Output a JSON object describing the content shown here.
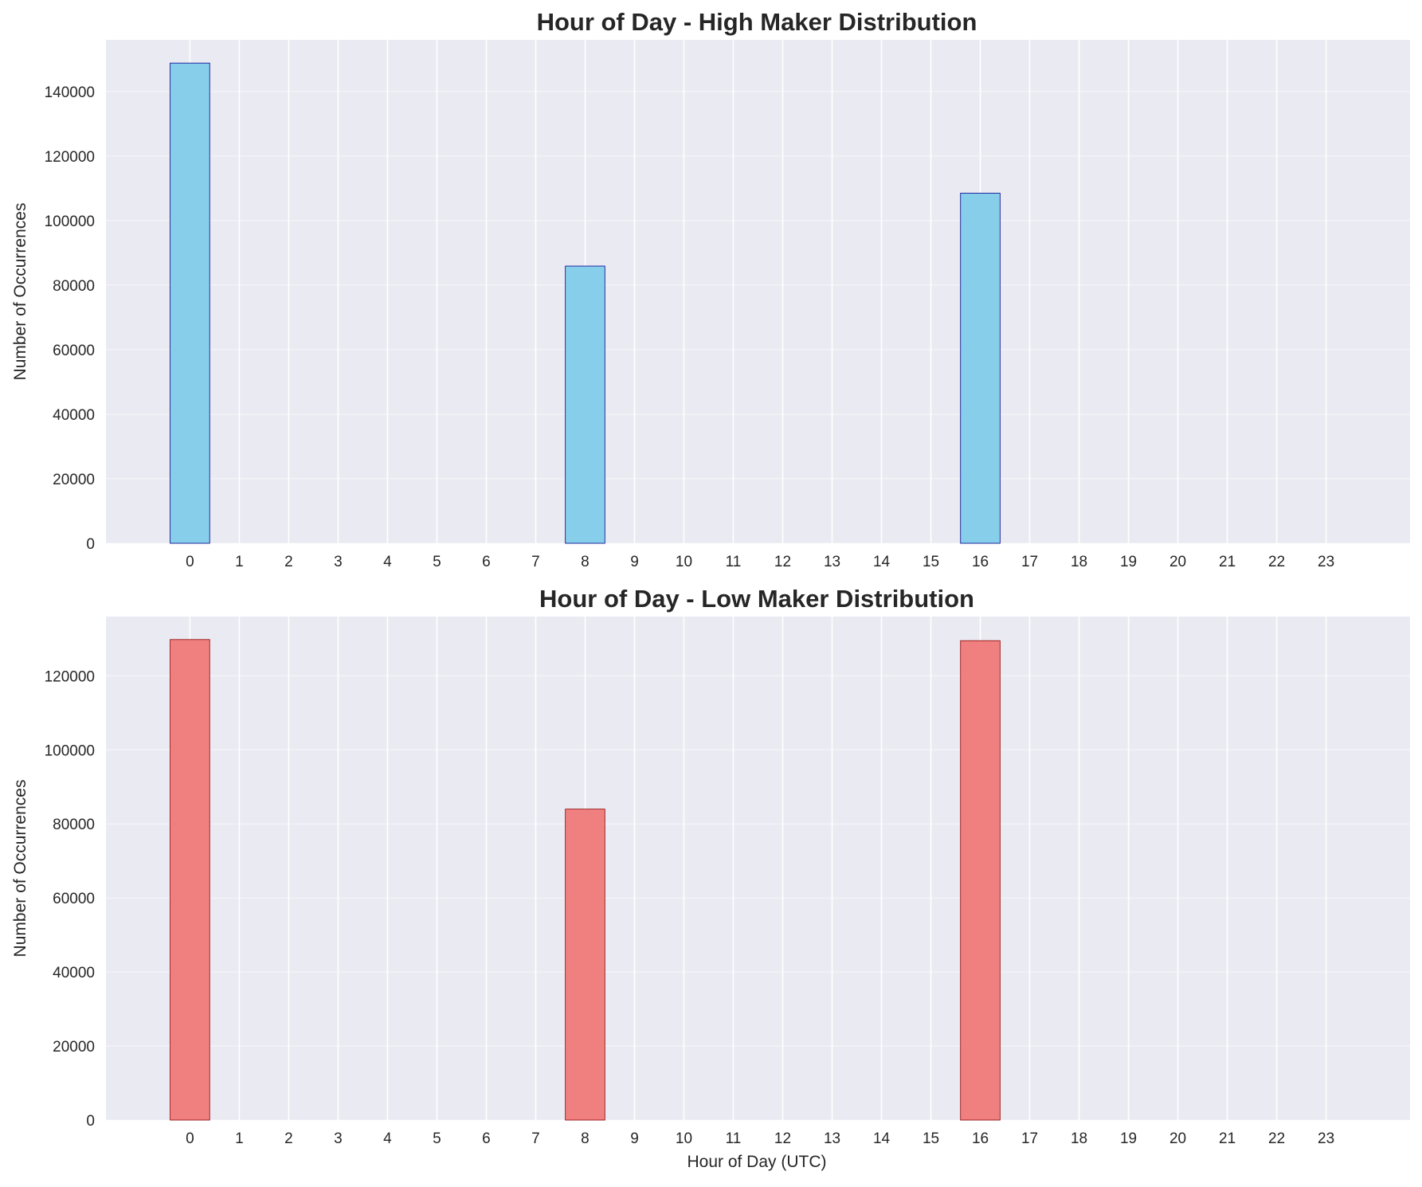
{
  "chart_data": [
    {
      "type": "bar",
      "title": "Hour of Day - High Maker Distribution",
      "xlabel": "",
      "ylabel": "Number of Occurrences",
      "categories": [
        "0",
        "1",
        "2",
        "3",
        "4",
        "5",
        "6",
        "7",
        "8",
        "9",
        "10",
        "11",
        "12",
        "13",
        "14",
        "15",
        "16",
        "17",
        "18",
        "19",
        "20",
        "21",
        "22",
        "23"
      ],
      "values": [
        148800,
        0,
        0,
        0,
        0,
        0,
        0,
        0,
        85900,
        0,
        0,
        0,
        0,
        0,
        0,
        0,
        108500,
        0,
        0,
        0,
        0,
        0,
        0,
        0
      ],
      "ylim": [
        0,
        156000
      ],
      "yticks": [
        0,
        20000,
        40000,
        60000,
        80000,
        100000,
        120000,
        140000
      ],
      "bar_color": "#87ceeb",
      "edge_color": "#00008b",
      "grid": true,
      "background": "#eaeaf2"
    },
    {
      "type": "bar",
      "title": "Hour of Day - Low Maker Distribution",
      "xlabel": "Hour of Day (UTC)",
      "ylabel": "Number of Occurrences",
      "categories": [
        "0",
        "1",
        "2",
        "3",
        "4",
        "5",
        "6",
        "7",
        "8",
        "9",
        "10",
        "11",
        "12",
        "13",
        "14",
        "15",
        "16",
        "17",
        "18",
        "19",
        "20",
        "21",
        "22",
        "23"
      ],
      "values": [
        129800,
        0,
        0,
        0,
        0,
        0,
        0,
        0,
        84000,
        0,
        0,
        0,
        0,
        0,
        0,
        0,
        129500,
        0,
        0,
        0,
        0,
        0,
        0,
        0
      ],
      "ylim": [
        0,
        136000
      ],
      "yticks": [
        0,
        20000,
        40000,
        60000,
        80000,
        100000,
        120000
      ],
      "bar_color": "#f08080",
      "edge_color": "#8b0000",
      "grid": true,
      "background": "#eaeaf2"
    }
  ]
}
